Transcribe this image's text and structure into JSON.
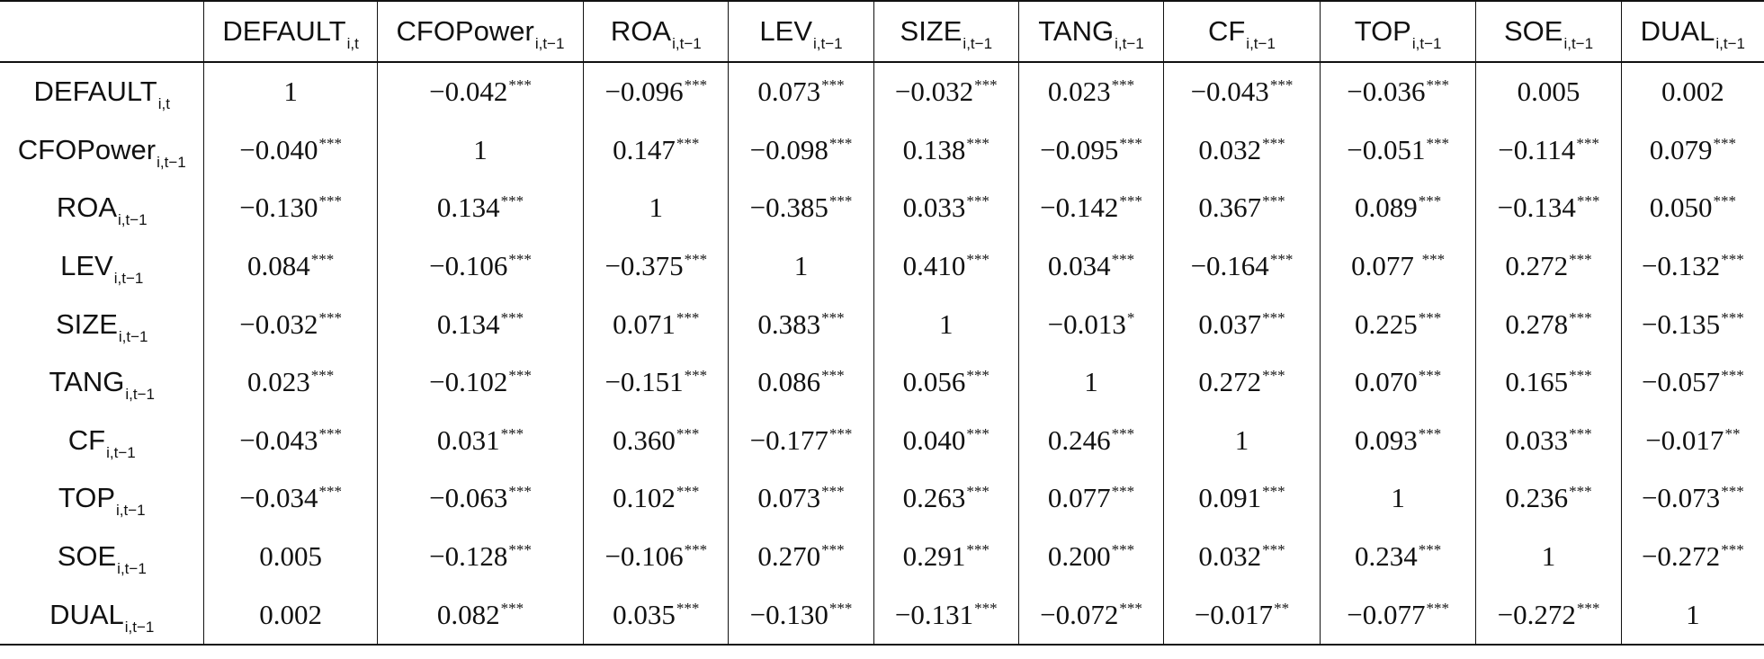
{
  "table": {
    "columns": [
      {
        "name": "DEFAULT",
        "sub": "i,t"
      },
      {
        "name": "CFOPower",
        "sub": "i,t−1"
      },
      {
        "name": "ROA",
        "sub": "i,t−1"
      },
      {
        "name": "LEV",
        "sub": "i,t−1"
      },
      {
        "name": "SIZE",
        "sub": "i,t−1"
      },
      {
        "name": "TANG",
        "sub": "i,t−1"
      },
      {
        "name": "CF",
        "sub": "i,t−1"
      },
      {
        "name": "TOP",
        "sub": "i,t−1"
      },
      {
        "name": "SOE",
        "sub": "i,t−1"
      },
      {
        "name": "DUAL",
        "sub": "i,t−1"
      }
    ],
    "rows": [
      {
        "name": "DEFAULT",
        "sub": "i,t",
        "cells": [
          {
            "v": "1",
            "s": ""
          },
          {
            "v": "−0.042",
            "s": "***"
          },
          {
            "v": "−0.096",
            "s": "***"
          },
          {
            "v": "0.073",
            "s": "***"
          },
          {
            "v": "−0.032",
            "s": "***"
          },
          {
            "v": "0.023",
            "s": "***"
          },
          {
            "v": "−0.043",
            "s": "***"
          },
          {
            "v": "−0.036",
            "s": "***"
          },
          {
            "v": "0.005",
            "s": ""
          },
          {
            "v": "0.002",
            "s": ""
          }
        ]
      },
      {
        "name": "CFOPower",
        "sub": "i,t−1",
        "cells": [
          {
            "v": "−0.040",
            "s": "***"
          },
          {
            "v": "1",
            "s": ""
          },
          {
            "v": "0.147",
            "s": "***"
          },
          {
            "v": "−0.098",
            "s": "***"
          },
          {
            "v": "0.138",
            "s": "***"
          },
          {
            "v": "−0.095",
            "s": "***"
          },
          {
            "v": "0.032",
            "s": "***"
          },
          {
            "v": "−0.051",
            "s": "***"
          },
          {
            "v": "−0.114",
            "s": "***"
          },
          {
            "v": "0.079",
            "s": "***"
          }
        ]
      },
      {
        "name": "ROA",
        "sub": "i,t−1",
        "cells": [
          {
            "v": "−0.130",
            "s": "***"
          },
          {
            "v": "0.134",
            "s": "***"
          },
          {
            "v": "1",
            "s": ""
          },
          {
            "v": "−0.385",
            "s": "***"
          },
          {
            "v": "0.033",
            "s": "***"
          },
          {
            "v": "−0.142",
            "s": "***"
          },
          {
            "v": "0.367",
            "s": "***"
          },
          {
            "v": "0.089",
            "s": "***"
          },
          {
            "v": "−0.134",
            "s": "***"
          },
          {
            "v": "0.050",
            "s": "***"
          }
        ]
      },
      {
        "name": "LEV",
        "sub": "i,t−1",
        "cells": [
          {
            "v": "0.084",
            "s": "***"
          },
          {
            "v": "−0.106",
            "s": "***"
          },
          {
            "v": "−0.375",
            "s": "***"
          },
          {
            "v": "1",
            "s": ""
          },
          {
            "v": "0.410",
            "s": "***"
          },
          {
            "v": "0.034",
            "s": "***"
          },
          {
            "v": "−0.164",
            "s": "***"
          },
          {
            "v": "0.077 ",
            "s": "***"
          },
          {
            "v": "0.272",
            "s": "***"
          },
          {
            "v": "−0.132",
            "s": "***"
          }
        ]
      },
      {
        "name": "SIZE",
        "sub": "i,t−1",
        "cells": [
          {
            "v": "−0.032",
            "s": "***"
          },
          {
            "v": "0.134",
            "s": "***"
          },
          {
            "v": "0.071",
            "s": "***"
          },
          {
            "v": "0.383",
            "s": "***"
          },
          {
            "v": "1",
            "s": ""
          },
          {
            "v": "−0.013",
            "s": "*"
          },
          {
            "v": "0.037",
            "s": "***"
          },
          {
            "v": "0.225",
            "s": "***"
          },
          {
            "v": "0.278",
            "s": "***"
          },
          {
            "v": "−0.135",
            "s": "***"
          }
        ]
      },
      {
        "name": "TANG",
        "sub": "i,t−1",
        "cells": [
          {
            "v": "0.023",
            "s": "***"
          },
          {
            "v": "−0.102",
            "s": "***"
          },
          {
            "v": "−0.151",
            "s": "***"
          },
          {
            "v": "0.086",
            "s": "***"
          },
          {
            "v": "0.056",
            "s": "***"
          },
          {
            "v": "1",
            "s": ""
          },
          {
            "v": "0.272",
            "s": "***"
          },
          {
            "v": "0.070",
            "s": "***"
          },
          {
            "v": "0.165",
            "s": "***"
          },
          {
            "v": "−0.057",
            "s": "***"
          }
        ]
      },
      {
        "name": "CF",
        "sub": "i,t−1",
        "cells": [
          {
            "v": "−0.043",
            "s": "***"
          },
          {
            "v": "0.031",
            "s": "***"
          },
          {
            "v": "0.360",
            "s": "***"
          },
          {
            "v": "−0.177",
            "s": "***"
          },
          {
            "v": "0.040",
            "s": "***"
          },
          {
            "v": "0.246",
            "s": "***"
          },
          {
            "v": "1",
            "s": ""
          },
          {
            "v": "0.093",
            "s": "***"
          },
          {
            "v": "0.033",
            "s": "***"
          },
          {
            "v": "−0.017",
            "s": "**"
          }
        ]
      },
      {
        "name": "TOP",
        "sub": "i,t−1",
        "cells": [
          {
            "v": "−0.034",
            "s": "***"
          },
          {
            "v": "−0.063",
            "s": "***"
          },
          {
            "v": "0.102",
            "s": "***"
          },
          {
            "v": "0.073",
            "s": "***"
          },
          {
            "v": "0.263",
            "s": "***"
          },
          {
            "v": "0.077",
            "s": "***"
          },
          {
            "v": "0.091",
            "s": "***"
          },
          {
            "v": "1",
            "s": ""
          },
          {
            "v": "0.236",
            "s": "***"
          },
          {
            "v": "−0.073",
            "s": "***"
          }
        ]
      },
      {
        "name": "SOE",
        "sub": "i,t−1",
        "cells": [
          {
            "v": "0.005",
            "s": ""
          },
          {
            "v": "−0.128",
            "s": "***"
          },
          {
            "v": "−0.106",
            "s": "***"
          },
          {
            "v": "0.270",
            "s": "***"
          },
          {
            "v": "0.291",
            "s": "***"
          },
          {
            "v": "0.200",
            "s": "***"
          },
          {
            "v": "0.032",
            "s": "***"
          },
          {
            "v": "0.234",
            "s": "***"
          },
          {
            "v": "1",
            "s": ""
          },
          {
            "v": "−0.272",
            "s": "***"
          }
        ]
      },
      {
        "name": "DUAL",
        "sub": "i,t−1",
        "cells": [
          {
            "v": "0.002",
            "s": ""
          },
          {
            "v": "0.082",
            "s": "***"
          },
          {
            "v": "0.035",
            "s": "***"
          },
          {
            "v": "−0.130",
            "s": "***"
          },
          {
            "v": "−0.131",
            "s": "***"
          },
          {
            "v": "−0.072",
            "s": "***"
          },
          {
            "v": "−0.017",
            "s": "**"
          },
          {
            "v": "−0.077",
            "s": "***"
          },
          {
            "v": "−0.272",
            "s": "***"
          },
          {
            "v": "1",
            "s": ""
          }
        ]
      }
    ]
  }
}
